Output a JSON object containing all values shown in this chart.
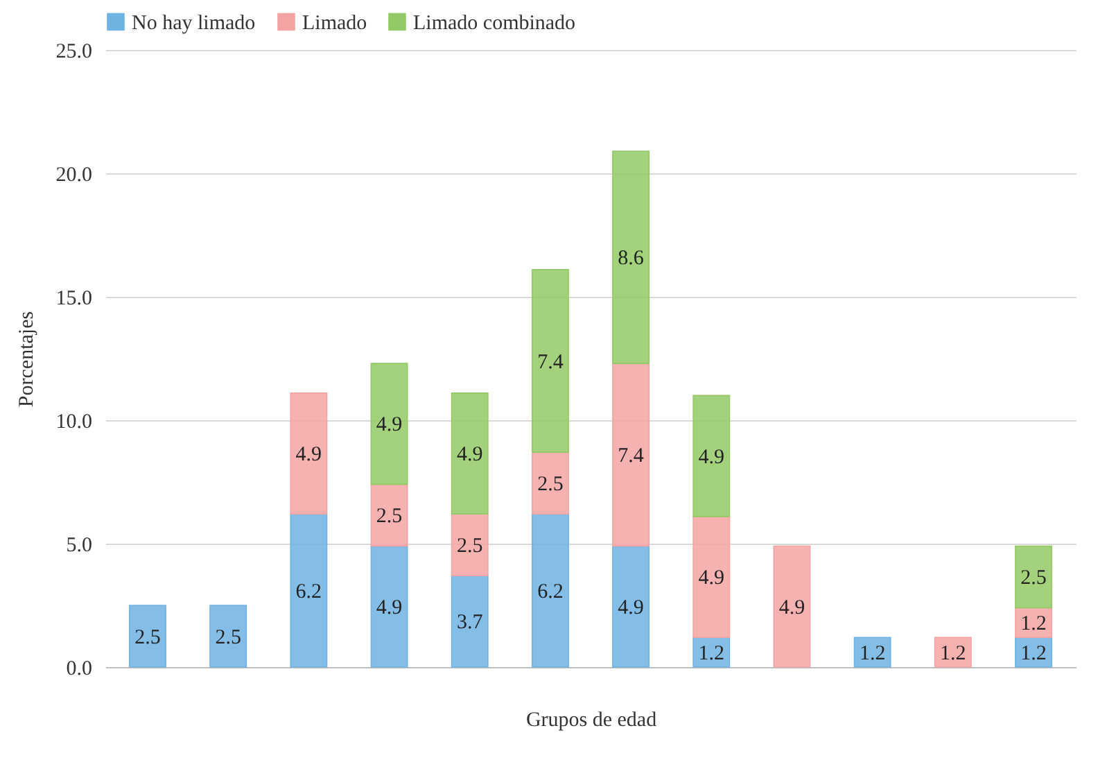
{
  "chart_data": {
    "type": "bar",
    "stacked": true,
    "xlabel": "Grupos de edad",
    "ylabel": "Porcentajes",
    "categories": [
      null,
      null,
      null,
      null,
      null,
      null,
      null,
      null,
      null,
      null,
      null,
      null
    ],
    "series": [
      {
        "name": "No hay limado",
        "color": "#6fb3e3",
        "values": [
          2.5,
          2.5,
          6.2,
          4.9,
          3.7,
          6.2,
          4.9,
          1.2,
          null,
          1.2,
          null,
          1.2
        ]
      },
      {
        "name": "Limado",
        "color": "#f4a3a3",
        "values": [
          null,
          null,
          4.9,
          2.5,
          2.5,
          2.5,
          7.4,
          4.9,
          4.9,
          null,
          1.2,
          1.2
        ]
      },
      {
        "name": "Limado combinado",
        "color": "#93c965",
        "values": [
          null,
          null,
          null,
          4.9,
          4.9,
          7.4,
          8.6,
          4.9,
          null,
          null,
          null,
          2.5
        ]
      }
    ],
    "ylim": [
      0,
      25
    ],
    "yticks": [
      {
        "value": 0,
        "label": "0.0"
      },
      {
        "value": 5,
        "label": "5.0"
      },
      {
        "value": 10,
        "label": "10.0"
      },
      {
        "value": 15,
        "label": "15.0"
      },
      {
        "value": 20,
        "label": "20.0"
      },
      {
        "value": 25,
        "label": "25.0"
      }
    ],
    "grid": "y",
    "legend": "top",
    "data_labels": true
  }
}
